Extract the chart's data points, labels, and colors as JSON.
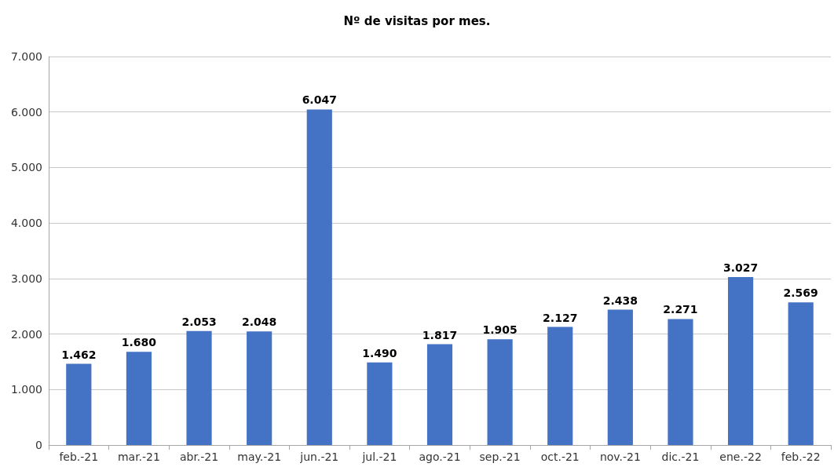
{
  "chart_data": {
    "type": "bar",
    "title": "Nº de visitas por mes.",
    "categories": [
      "feb.-21",
      "mar.-21",
      "abr.-21",
      "may.-21",
      "jun.-21",
      "jul.-21",
      "ago.-21",
      "sep.-21",
      "oct.-21",
      "nov.-21",
      "dic.-21",
      "ene.-22",
      "feb.-22"
    ],
    "values": [
      1462,
      1680,
      2053,
      2048,
      6047,
      1490,
      1817,
      1905,
      2127,
      2438,
      2271,
      3027,
      2569
    ],
    "value_labels": [
      "1.462",
      "1.680",
      "2.053",
      "2.048",
      "6.047",
      "1.490",
      "1.817",
      "1.905",
      "2.127",
      "2.438",
      "2.271",
      "3.027",
      "2.569"
    ],
    "color": "#4472c4",
    "ylim": [
      0,
      7000
    ],
    "yticks": [
      0,
      {
        "value": 1000,
        "label": "1.000"
      },
      {
        "value": 2000,
        "label": "2.000"
      },
      {
        "value": 3000,
        "label": "3.000"
      },
      {
        "value": 4000,
        "label": "4.000"
      },
      {
        "value": 5000,
        "label": "5.000"
      },
      {
        "value": 6000,
        "label": "6.000"
      },
      {
        "value": 7000,
        "label": "7.000"
      }
    ],
    "grid": "y"
  }
}
